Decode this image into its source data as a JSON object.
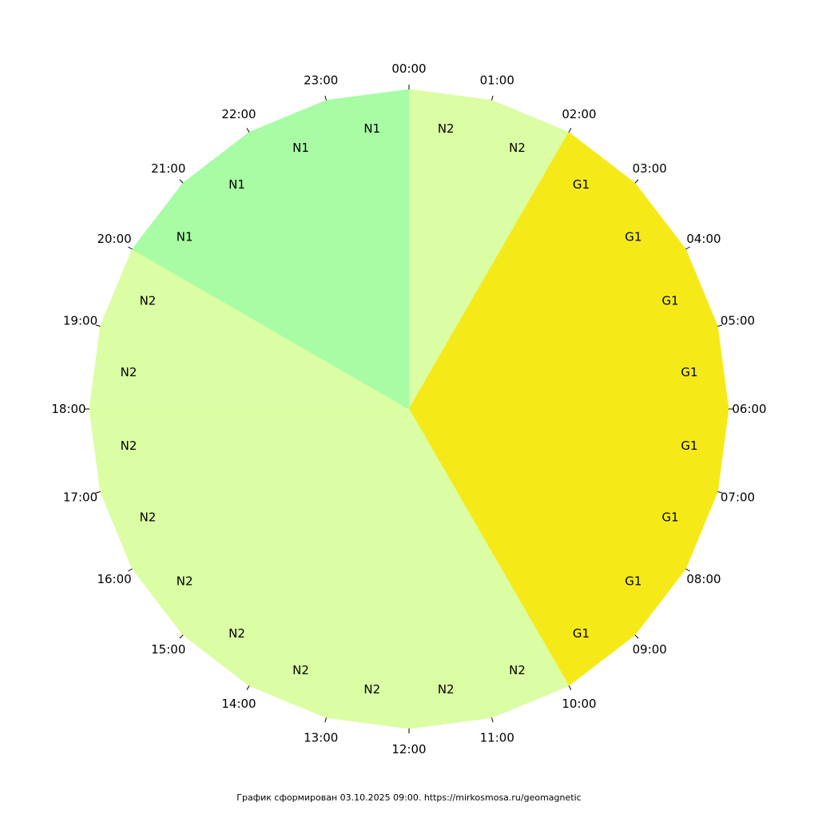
{
  "chart_data": {
    "type": "pie",
    "hours": [
      "00:00",
      "01:00",
      "02:00",
      "03:00",
      "04:00",
      "05:00",
      "06:00",
      "07:00",
      "08:00",
      "09:00",
      "10:00",
      "11:00",
      "12:00",
      "13:00",
      "14:00",
      "15:00",
      "16:00",
      "17:00",
      "18:00",
      "19:00",
      "20:00",
      "21:00",
      "22:00",
      "23:00"
    ],
    "levels": [
      "N2",
      "N2",
      "G1",
      "G1",
      "G1",
      "G1",
      "G1",
      "G1",
      "G1",
      "G1",
      "N2",
      "N2",
      "N2",
      "N2",
      "N2",
      "N2",
      "N2",
      "N2",
      "N2",
      "N2",
      "N1",
      "N1",
      "N1",
      "N1"
    ],
    "level_colors": {
      "N1": "#a7fca4",
      "N2": "#dbfda3",
      "G1": "#f5ea18"
    }
  },
  "footer": {
    "text": "График сформирован 03.10.2025 09:00. https://mirkosmosa.ru/geomagnetic"
  }
}
